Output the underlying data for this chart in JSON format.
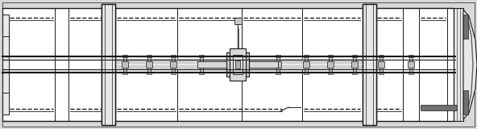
{
  "bg_color": "#d8d8d8",
  "panel_color": "#ffffff",
  "col_color": "#e8e8e8",
  "col_dark": "#c8c8c8",
  "rail_color": "#e0e0e0",
  "mech_color": "#c0c0c0",
  "dark_gray": "#707070",
  "line_color": "#1a1a1a",
  "fig_width": 5.92,
  "fig_height": 1.6,
  "dpi": 100
}
